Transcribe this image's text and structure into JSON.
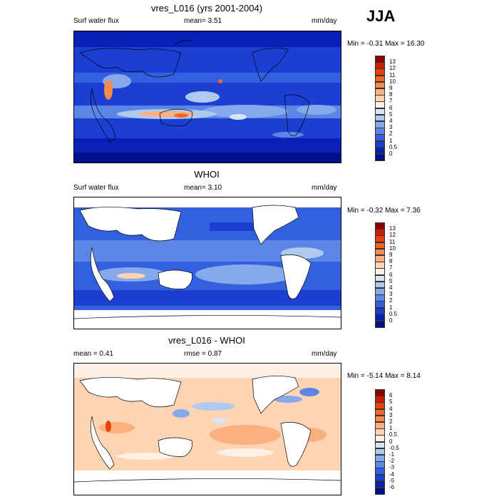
{
  "season": "JJA",
  "panels": [
    {
      "id": "model",
      "title": "vres_L016 (yrs 2001-2004)",
      "left_label": "Surf water flux",
      "mean_text": "mean=   3.51",
      "extra_text": "",
      "units": "mm/day",
      "minmax": "Min =  -0.31 Max =  16.30"
    },
    {
      "id": "obs",
      "title": "WHOI",
      "left_label": "Surf water flux",
      "mean_text": "mean=   3.10",
      "extra_text": "",
      "units": "mm/day",
      "minmax": "Min =  -0.32 Max =   7.36"
    },
    {
      "id": "diff",
      "title": "vres_L016 - WHOI",
      "left_label": "mean =   0.41",
      "mean_text": "rmse =   0.87",
      "extra_text": "",
      "units": "mm/day",
      "minmax": "Min =  -5.14 Max =   8.14"
    }
  ],
  "colorbars": {
    "abs": {
      "labels": [
        "13",
        "12",
        "11",
        "10",
        "9",
        "8",
        "7",
        "6",
        "5",
        "4",
        "3",
        "2",
        "1",
        "0.5",
        "0"
      ],
      "colors": [
        "#8b0000",
        "#c81e00",
        "#e8400a",
        "#f4661e",
        "#f98a4a",
        "#fbb07f",
        "#fdd5b5",
        "#fef0e2",
        "#d7e5f7",
        "#b0c9f0",
        "#86a9ec",
        "#5b86e6",
        "#3360de",
        "#1a3fd2",
        "#0a1fb5",
        "#000f8a"
      ]
    },
    "diff": {
      "labels": [
        "6",
        "5",
        "4",
        "3",
        "2",
        "1",
        "0.5",
        "0",
        "-0.5",
        "-1",
        "-2",
        "-3",
        "-4",
        "-5",
        "-6"
      ],
      "colors": [
        "#8b0000",
        "#c81e00",
        "#e8400a",
        "#f4661e",
        "#f98a4a",
        "#fbb07f",
        "#fdd5b5",
        "#fef0e2",
        "#d7e5f7",
        "#b0c9f0",
        "#86a9ec",
        "#5b86e6",
        "#3360de",
        "#1a3fd2",
        "#0a1fb5",
        "#000f8a"
      ]
    }
  }
}
